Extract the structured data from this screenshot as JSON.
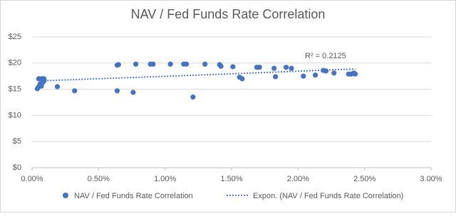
{
  "chart_data": {
    "type": "scatter",
    "title": "NAV / Fed Funds Rate Correlation",
    "series": [
      {
        "name": "NAV / Fed Funds Rate Correlation",
        "color": "#4472c4",
        "x": [
          0.05,
          0.07,
          0.08,
          0.09,
          0.06,
          0.08,
          0.09,
          0.05,
          0.04,
          0.07,
          0.19,
          0.32,
          0.64,
          0.65,
          0.64,
          0.76,
          0.78,
          0.89,
          0.91,
          1.04,
          1.14,
          1.16,
          1.21,
          1.3,
          1.41,
          1.42,
          1.51,
          1.56,
          1.58,
          1.69,
          1.71,
          1.82,
          1.83,
          1.91,
          1.95,
          2.04,
          2.13,
          2.19,
          2.21,
          2.27,
          2.38,
          2.4,
          2.42,
          2.43
        ],
        "values": [
          17.0,
          17.0,
          17.0,
          17.0,
          16.0,
          16.3,
          16.6,
          15.5,
          15.1,
          15.6,
          15.5,
          14.7,
          19.6,
          19.7,
          14.7,
          14.4,
          19.8,
          19.8,
          19.8,
          19.8,
          19.8,
          19.8,
          13.5,
          19.8,
          19.7,
          19.4,
          19.3,
          17.3,
          17.0,
          19.2,
          19.2,
          19.0,
          17.4,
          19.2,
          19.0,
          17.5,
          17.7,
          18.6,
          18.5,
          18.1,
          17.9,
          17.9,
          18.1,
          17.9
        ]
      }
    ],
    "trendline": {
      "name": "Expon. (NAV / Fed Funds Rate Correlation)",
      "color": "#4472c4",
      "x": [
        0.05,
        0.6,
        1.2,
        1.8,
        2.43
      ],
      "values": [
        16.6,
        17.1,
        17.66,
        18.25,
        18.89
      ]
    },
    "annotation": "R² = 0.2125",
    "xlim": [
      0,
      3
    ],
    "xticks": [
      {
        "value": 0,
        "label": "0.00%"
      },
      {
        "value": 0.5,
        "label": "0.50%"
      },
      {
        "value": 1,
        "label": "1.00%"
      },
      {
        "value": 1.5,
        "label": "1.50%"
      },
      {
        "value": 2,
        "label": "2.00%"
      },
      {
        "value": 2.5,
        "label": "2.50%"
      },
      {
        "value": 3,
        "label": "3.00%"
      }
    ],
    "ylim": [
      0,
      25
    ],
    "yticks": [
      {
        "value": 0,
        "label": "$0"
      },
      {
        "value": 5,
        "label": "$5"
      },
      {
        "value": 10,
        "label": "$10"
      },
      {
        "value": 15,
        "label": "$15"
      },
      {
        "value": 20,
        "label": "$20"
      },
      {
        "value": 25,
        "label": "$25"
      }
    ],
    "grid": true
  }
}
